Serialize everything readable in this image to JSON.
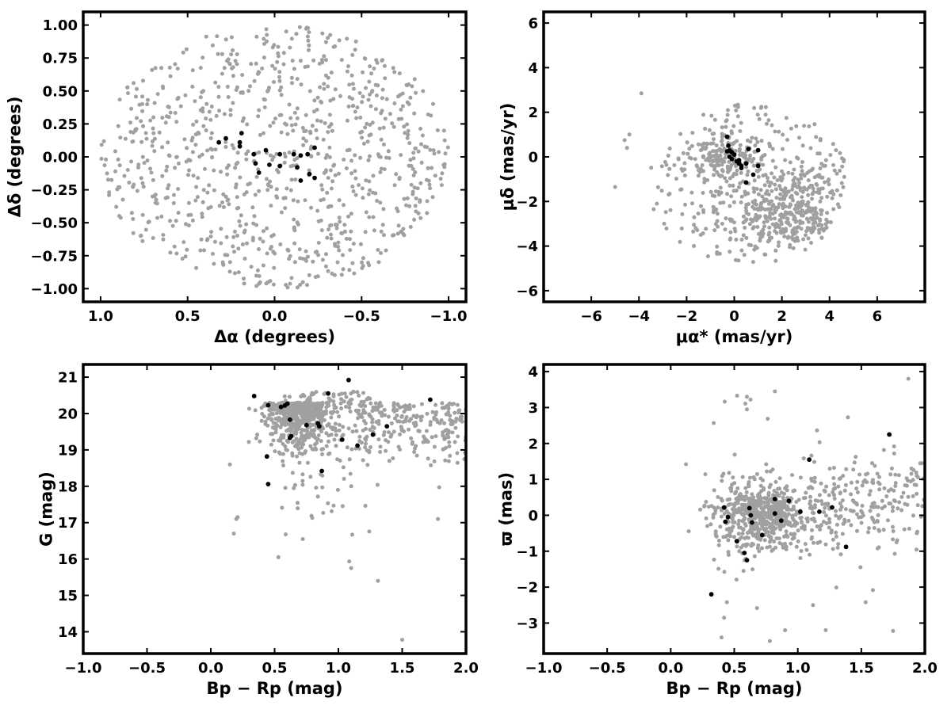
{
  "colors": {
    "field": "#a0a0a0",
    "members": "#000000",
    "axes": "#000000",
    "background": "#ffffff"
  },
  "chart_data": [
    {
      "type": "scatter",
      "xlabel": "Δα (degrees)",
      "ylabel": "Δδ (degrees)",
      "xlim": [
        1.1,
        -1.1
      ],
      "ylim": [
        -1.1,
        1.1
      ],
      "x_inverted": true,
      "xticks": [
        1.0,
        0.5,
        0.0,
        -0.5,
        -1.0
      ],
      "xtick_labels": [
        "1.0",
        "0.5",
        "0.0",
        "−0.5",
        "−1.0"
      ],
      "yticks": [
        -1.0,
        -0.75,
        -0.5,
        -0.25,
        0.0,
        0.25,
        0.5,
        0.75,
        1.0
      ],
      "ytick_labels": [
        "−1.00",
        "−0.75",
        "−0.50",
        "−0.25",
        "0.00",
        "0.25",
        "0.50",
        "0.75",
        "1.00"
      ],
      "grid": false,
      "series": [
        {
          "role": "field",
          "color": "#a0a0a0",
          "generated": {
            "shape": "disk",
            "n": 900,
            "cx": 0,
            "cy": 0,
            "r": 1.0,
            "seed": 11
          }
        },
        {
          "role": "members",
          "color": "#000000",
          "points": [
            [
              0.32,
              0.11
            ],
            [
              0.28,
              0.14
            ],
            [
              0.2,
              0.11
            ],
            [
              0.2,
              0.08
            ],
            [
              0.19,
              0.18
            ],
            [
              0.12,
              0.02
            ],
            [
              0.11,
              -0.05
            ],
            [
              0.09,
              -0.12
            ],
            [
              0.05,
              0.05
            ],
            [
              0.03,
              -0.06
            ],
            [
              -0.03,
              0.02
            ],
            [
              -0.03,
              -0.07
            ],
            [
              -0.11,
              0.02
            ],
            [
              -0.13,
              -0.08
            ],
            [
              -0.15,
              -0.18
            ],
            [
              -0.15,
              0.01
            ],
            [
              -0.19,
              0.02
            ],
            [
              -0.2,
              -0.13
            ],
            [
              -0.23,
              -0.16
            ],
            [
              -0.23,
              0.07
            ]
          ]
        }
      ]
    },
    {
      "type": "scatter",
      "xlabel": "μα* (mas/yr)",
      "ylabel": "μδ (mas/yr)",
      "xlim": [
        -8,
        8
      ],
      "ylim": [
        -6.5,
        6.5
      ],
      "xticks": [
        -6,
        -4,
        -2,
        0,
        2,
        4,
        6
      ],
      "xtick_labels": [
        "−6",
        "−4",
        "−2",
        "0",
        "2",
        "4",
        "6"
      ],
      "yticks": [
        -6,
        -4,
        -2,
        0,
        2,
        4,
        6
      ],
      "ytick_labels": [
        "−6",
        "−4",
        "−2",
        "0",
        "2",
        "4",
        "6"
      ],
      "grid": false,
      "series": [
        {
          "role": "field",
          "color": "#a0a0a0",
          "generated": {
            "shape": "ellipse",
            "n": 800,
            "cx": 0.6,
            "cy": -1.2,
            "rx": 4.2,
            "ry": 3.6,
            "cluster": {
              "cx": 2.2,
              "cy": -2.5,
              "sx": 1.1,
              "sy": 1.0,
              "n": 380
            },
            "clump": {
              "cx": -0.4,
              "cy": 0.0,
              "sx": 0.7,
              "sy": 0.5,
              "n": 150
            },
            "seed": 22
          }
        },
        {
          "role": "members",
          "color": "#000000",
          "points": [
            [
              -0.3,
              0.9
            ],
            [
              -0.25,
              0.5
            ],
            [
              -0.2,
              0.3
            ],
            [
              -0.15,
              0.25
            ],
            [
              -0.1,
              0.2
            ],
            [
              -0.2,
              0.0
            ],
            [
              -0.1,
              -0.1
            ],
            [
              0.1,
              -0.2
            ],
            [
              0.2,
              -0.3
            ],
            [
              0.3,
              -0.5
            ],
            [
              0.5,
              -0.3
            ],
            [
              0.6,
              0.35
            ],
            [
              0.5,
              -1.15
            ],
            [
              1.0,
              0.3
            ],
            [
              1.0,
              -0.4
            ],
            [
              0.8,
              -0.8
            ],
            [
              0.3,
              -0.4
            ],
            [
              0.0,
              0.1
            ],
            [
              -0.3,
              0.25
            ],
            [
              0.2,
              -0.15
            ]
          ]
        }
      ]
    },
    {
      "type": "scatter",
      "xlabel": "Bp − Rp (mag)",
      "ylabel": "G (mag)",
      "xlim": [
        -1.0,
        2.0
      ],
      "ylim": [
        13.4,
        21.35
      ],
      "xticks": [
        -1.0,
        -0.5,
        0.0,
        0.5,
        1.0,
        1.5,
        2.0
      ],
      "xtick_labels": [
        "−1.0",
        "−0.5",
        "0.0",
        "0.5",
        "1.0",
        "1.5",
        "2.0"
      ],
      "yticks": [
        14,
        15,
        16,
        17,
        18,
        19,
        20,
        21
      ],
      "ytick_labels": [
        "14",
        "15",
        "16",
        "17",
        "18",
        "19",
        "20",
        "21"
      ],
      "grid": false,
      "series": [
        {
          "role": "field",
          "color": "#a0a0a0",
          "generated": {
            "shape": "cmd",
            "n": 900,
            "seed": 33
          }
        },
        {
          "role": "members",
          "color": "#000000",
          "points": [
            [
              0.34,
              20.48
            ],
            [
              0.45,
              20.23
            ],
            [
              0.55,
              20.18
            ],
            [
              0.58,
              20.22
            ],
            [
              0.6,
              20.27
            ],
            [
              0.62,
              19.83
            ],
            [
              0.63,
              19.38
            ],
            [
              0.62,
              19.33
            ],
            [
              0.75,
              19.68
            ],
            [
              0.85,
              19.65
            ],
            [
              0.84,
              19.73
            ],
            [
              0.92,
              20.55
            ],
            [
              1.08,
              20.92
            ],
            [
              1.03,
              19.28
            ],
            [
              1.15,
              19.12
            ],
            [
              1.27,
              19.42
            ],
            [
              1.38,
              19.65
            ],
            [
              1.72,
              20.38
            ],
            [
              0.44,
              18.82
            ],
            [
              0.45,
              18.06
            ],
            [
              0.87,
              18.42
            ]
          ]
        }
      ]
    },
    {
      "type": "scatter",
      "xlabel": "Bp − Rp (mag)",
      "ylabel": "ϖ (mas)",
      "xlim": [
        -1.0,
        2.0
      ],
      "ylim": [
        -3.85,
        4.2
      ],
      "xticks": [
        -1.0,
        -0.5,
        0.0,
        0.5,
        1.0,
        1.5,
        2.0
      ],
      "xtick_labels": [
        "−1.0",
        "−0.5",
        "0.0",
        "0.5",
        "1.0",
        "1.5",
        "2.0"
      ],
      "yticks": [
        -3,
        -2,
        -1,
        0,
        1,
        2,
        3,
        4
      ],
      "ytick_labels": [
        "−3",
        "−2",
        "−1",
        "0",
        "1",
        "2",
        "3",
        "4"
      ],
      "grid": false,
      "series": [
        {
          "role": "field",
          "color": "#a0a0a0",
          "generated": {
            "shape": "plx",
            "n": 850,
            "seed": 44
          }
        },
        {
          "role": "members",
          "color": "#000000",
          "points": [
            [
              0.32,
              -2.2
            ],
            [
              0.42,
              0.22
            ],
            [
              0.45,
              -0.05
            ],
            [
              0.43,
              -0.18
            ],
            [
              0.52,
              -0.72
            ],
            [
              0.58,
              -1.05
            ],
            [
              0.6,
              -1.25
            ],
            [
              0.62,
              0.2
            ],
            [
              0.63,
              0.0
            ],
            [
              0.64,
              -0.2
            ],
            [
              0.72,
              -0.55
            ],
            [
              0.82,
              0.45
            ],
            [
              0.82,
              0.05
            ],
            [
              0.87,
              -0.15
            ],
            [
              0.93,
              0.4
            ],
            [
              1.02,
              0.1
            ],
            [
              1.09,
              1.55
            ],
            [
              1.17,
              0.1
            ],
            [
              1.27,
              0.22
            ],
            [
              1.38,
              -0.88
            ],
            [
              1.72,
              2.25
            ]
          ]
        }
      ]
    }
  ]
}
